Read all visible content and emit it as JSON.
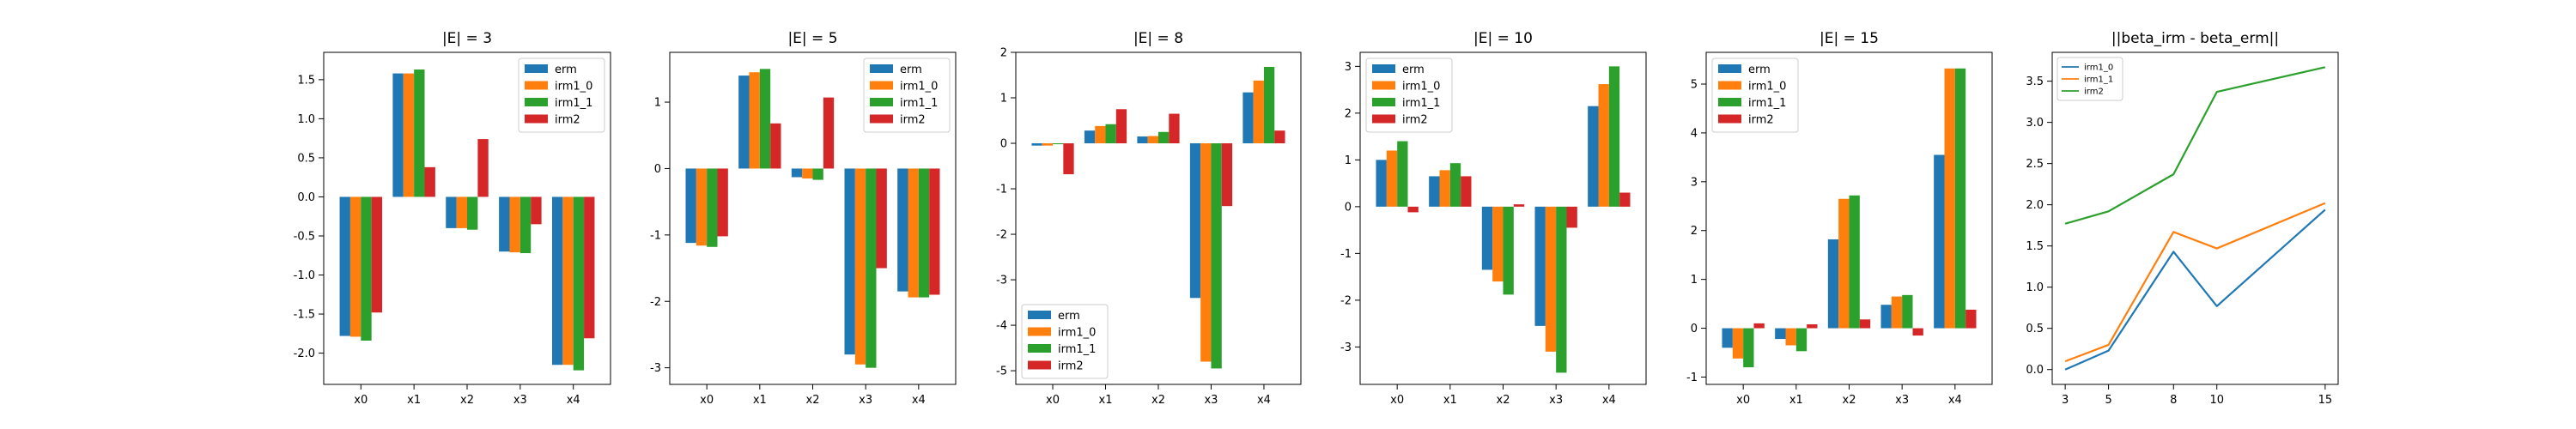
{
  "chart_data": [
    {
      "type": "bar",
      "title": "|E| = 3",
      "categories": [
        "x0",
        "x1",
        "x2",
        "x3",
        "x4"
      ],
      "series": [
        {
          "name": "erm",
          "values": [
            -1.78,
            1.58,
            -0.4,
            -0.7,
            -2.15
          ]
        },
        {
          "name": "irm1_0",
          "values": [
            -1.79,
            1.58,
            -0.4,
            -0.71,
            -2.15
          ]
        },
        {
          "name": "irm1_1",
          "values": [
            -1.84,
            1.63,
            -0.42,
            -0.72,
            -2.22
          ]
        },
        {
          "name": "irm2",
          "values": [
            -1.48,
            0.38,
            0.74,
            -0.35,
            -1.81
          ]
        }
      ],
      "yticks": [
        "-2.0",
        "-1.5",
        "-1.0",
        "-0.5",
        "0.0",
        "0.5",
        "1.0",
        "1.5"
      ],
      "ylim": [
        -2.4,
        1.85
      ],
      "legend": "top-right",
      "xlabel": "",
      "ylabel": ""
    },
    {
      "type": "bar",
      "title": "|E| = 5",
      "categories": [
        "x0",
        "x1",
        "x2",
        "x3",
        "x4"
      ],
      "series": [
        {
          "name": "erm",
          "values": [
            -1.12,
            1.4,
            -0.13,
            -2.8,
            -1.85
          ]
        },
        {
          "name": "irm1_0",
          "values": [
            -1.16,
            1.45,
            -0.15,
            -2.95,
            -1.94
          ]
        },
        {
          "name": "irm1_1",
          "values": [
            -1.18,
            1.5,
            -0.17,
            -3.0,
            -1.94
          ]
        },
        {
          "name": "irm2",
          "values": [
            -1.02,
            0.68,
            1.07,
            -1.5,
            -1.9
          ]
        }
      ],
      "yticks": [
        "-3",
        "-2",
        "-1",
        "0",
        "1"
      ],
      "ylim": [
        -3.25,
        1.75
      ],
      "legend": "top-right",
      "xlabel": "",
      "ylabel": ""
    },
    {
      "type": "bar",
      "title": "|E| = 8",
      "categories": [
        "x0",
        "x1",
        "x2",
        "x3",
        "x4"
      ],
      "series": [
        {
          "name": "erm",
          "values": [
            -0.05,
            0.28,
            0.15,
            -3.4,
            1.12
          ]
        },
        {
          "name": "irm1_0",
          "values": [
            -0.05,
            0.38,
            0.16,
            -4.8,
            1.38
          ]
        },
        {
          "name": "irm1_1",
          "values": [
            -0.02,
            0.42,
            0.25,
            -4.95,
            1.68
          ]
        },
        {
          "name": "irm2",
          "values": [
            -0.68,
            0.75,
            0.65,
            -1.38,
            0.28
          ]
        }
      ],
      "yticks": [
        "-5",
        "-4",
        "-3",
        "-2",
        "-1",
        "0",
        "1",
        "2"
      ],
      "ylim": [
        -5.3,
        2.0
      ],
      "legend": "bottom-left",
      "xlabel": "",
      "ylabel": ""
    },
    {
      "type": "bar",
      "title": "|E| = 10",
      "categories": [
        "x0",
        "x1",
        "x2",
        "x3",
        "x4"
      ],
      "series": [
        {
          "name": "erm",
          "values": [
            1.0,
            0.65,
            -1.35,
            -2.55,
            2.15
          ]
        },
        {
          "name": "irm1_0",
          "values": [
            1.2,
            0.78,
            -1.6,
            -3.1,
            2.62
          ]
        },
        {
          "name": "irm1_1",
          "values": [
            1.4,
            0.93,
            -1.88,
            -3.55,
            3.0
          ]
        },
        {
          "name": "irm2",
          "values": [
            -0.12,
            0.65,
            0.05,
            -0.45,
            0.3
          ]
        }
      ],
      "yticks": [
        "-3",
        "-2",
        "-1",
        "0",
        "1",
        "2",
        "3"
      ],
      "ylim": [
        -3.8,
        3.3
      ],
      "legend": "top-left",
      "xlabel": "",
      "ylabel": ""
    },
    {
      "type": "bar",
      "title": "|E| = 15",
      "categories": [
        "x0",
        "x1",
        "x2",
        "x3",
        "x4"
      ],
      "series": [
        {
          "name": "erm",
          "values": [
            -0.4,
            -0.22,
            1.82,
            0.48,
            3.55
          ]
        },
        {
          "name": "irm1_0",
          "values": [
            -0.62,
            -0.35,
            2.65,
            0.65,
            5.32
          ]
        },
        {
          "name": "irm1_1",
          "values": [
            -0.8,
            -0.47,
            2.72,
            0.68,
            5.32
          ]
        },
        {
          "name": "irm2",
          "values": [
            0.1,
            0.08,
            0.18,
            -0.15,
            0.38
          ]
        }
      ],
      "yticks": [
        "-1",
        "0",
        "1",
        "2",
        "3",
        "4",
        "5"
      ],
      "ylim": [
        -1.15,
        5.65
      ],
      "legend": "top-left",
      "xlabel": "",
      "ylabel": ""
    },
    {
      "type": "line",
      "title": "||beta_irm - beta_erm||",
      "x": [
        3,
        5,
        8,
        10,
        15
      ],
      "xticks": [
        "3",
        "5",
        "8",
        "10",
        "15"
      ],
      "series": [
        {
          "name": "irm1_0",
          "values": [
            0.0,
            0.23,
            1.43,
            0.77,
            1.94
          ]
        },
        {
          "name": "irm1_1",
          "values": [
            0.1,
            0.3,
            1.67,
            1.47,
            2.02
          ]
        },
        {
          "name": "irm2",
          "values": [
            1.77,
            1.92,
            2.37,
            3.37,
            3.67
          ]
        }
      ],
      "yticks": [
        "0.0",
        "0.5",
        "1.0",
        "1.5",
        "2.0",
        "2.5",
        "3.0",
        "3.5"
      ],
      "ylim": [
        -0.18,
        3.85
      ],
      "legend": "top-left",
      "xlabel": "",
      "ylabel": ""
    }
  ],
  "colors": {
    "erm": "#1f77b4",
    "irm1_0": "#ff7f0e",
    "irm1_1": "#2ca02c",
    "irm2": "#d62728",
    "line_irm1_0": "#1f77b4",
    "line_irm1_1": "#ff7f0e",
    "line_irm2": "#2ca02c"
  }
}
